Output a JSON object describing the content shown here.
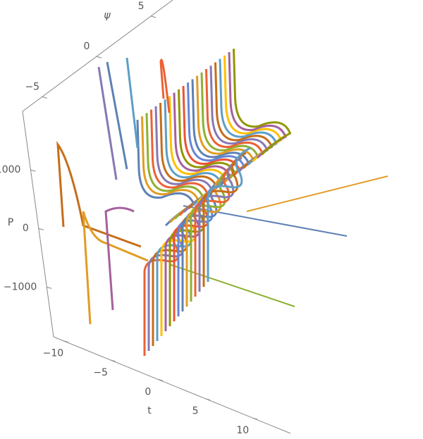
{
  "chart_data": {
    "type": "line3d",
    "xlabel": "t",
    "ylabel": "ψ",
    "zlabel": "P",
    "xlim": [
      -11,
      14
    ],
    "xticks": [
      {
        "value": -10,
        "label": "−10"
      },
      {
        "value": -5,
        "label": "−5"
      },
      0,
      5,
      10
    ],
    "ylim": [
      -6.8,
      7
    ],
    "yticks": [
      {
        "value": -5,
        "label": "−5"
      },
      0,
      5
    ],
    "zlim": [
      -1850,
      2000
    ],
    "zticks": [
      {
        "value": -1000,
        "label": "−1000"
      },
      0,
      1000
    ]
  }
}
